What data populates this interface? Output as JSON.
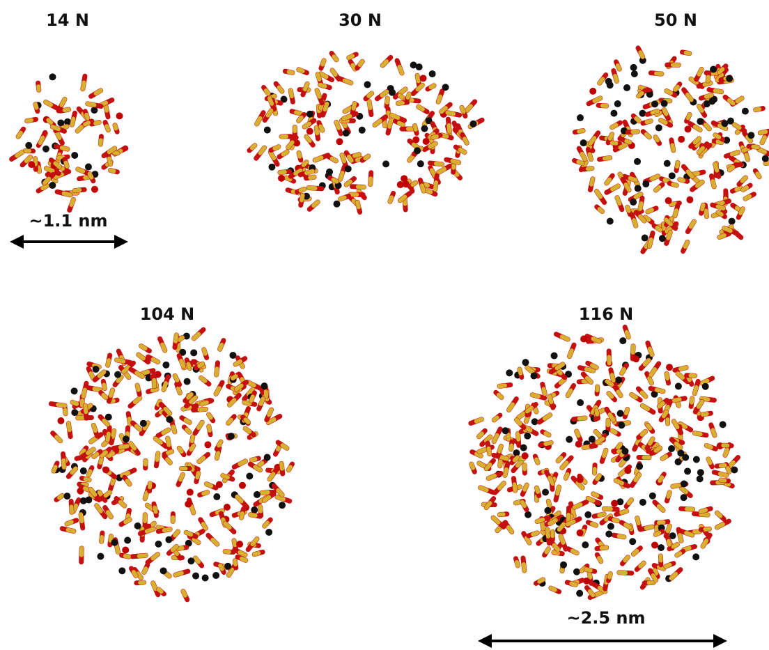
{
  "panels": [
    {
      "label": "14 N"
    },
    {
      "label": "30 N"
    },
    {
      "label": "50 N"
    },
    {
      "label": "104 N"
    },
    {
      "label": "116 N"
    }
  ],
  "scales": [
    {
      "label": "~1.1 nm"
    },
    {
      "label": "~2.5 nm"
    }
  ]
}
